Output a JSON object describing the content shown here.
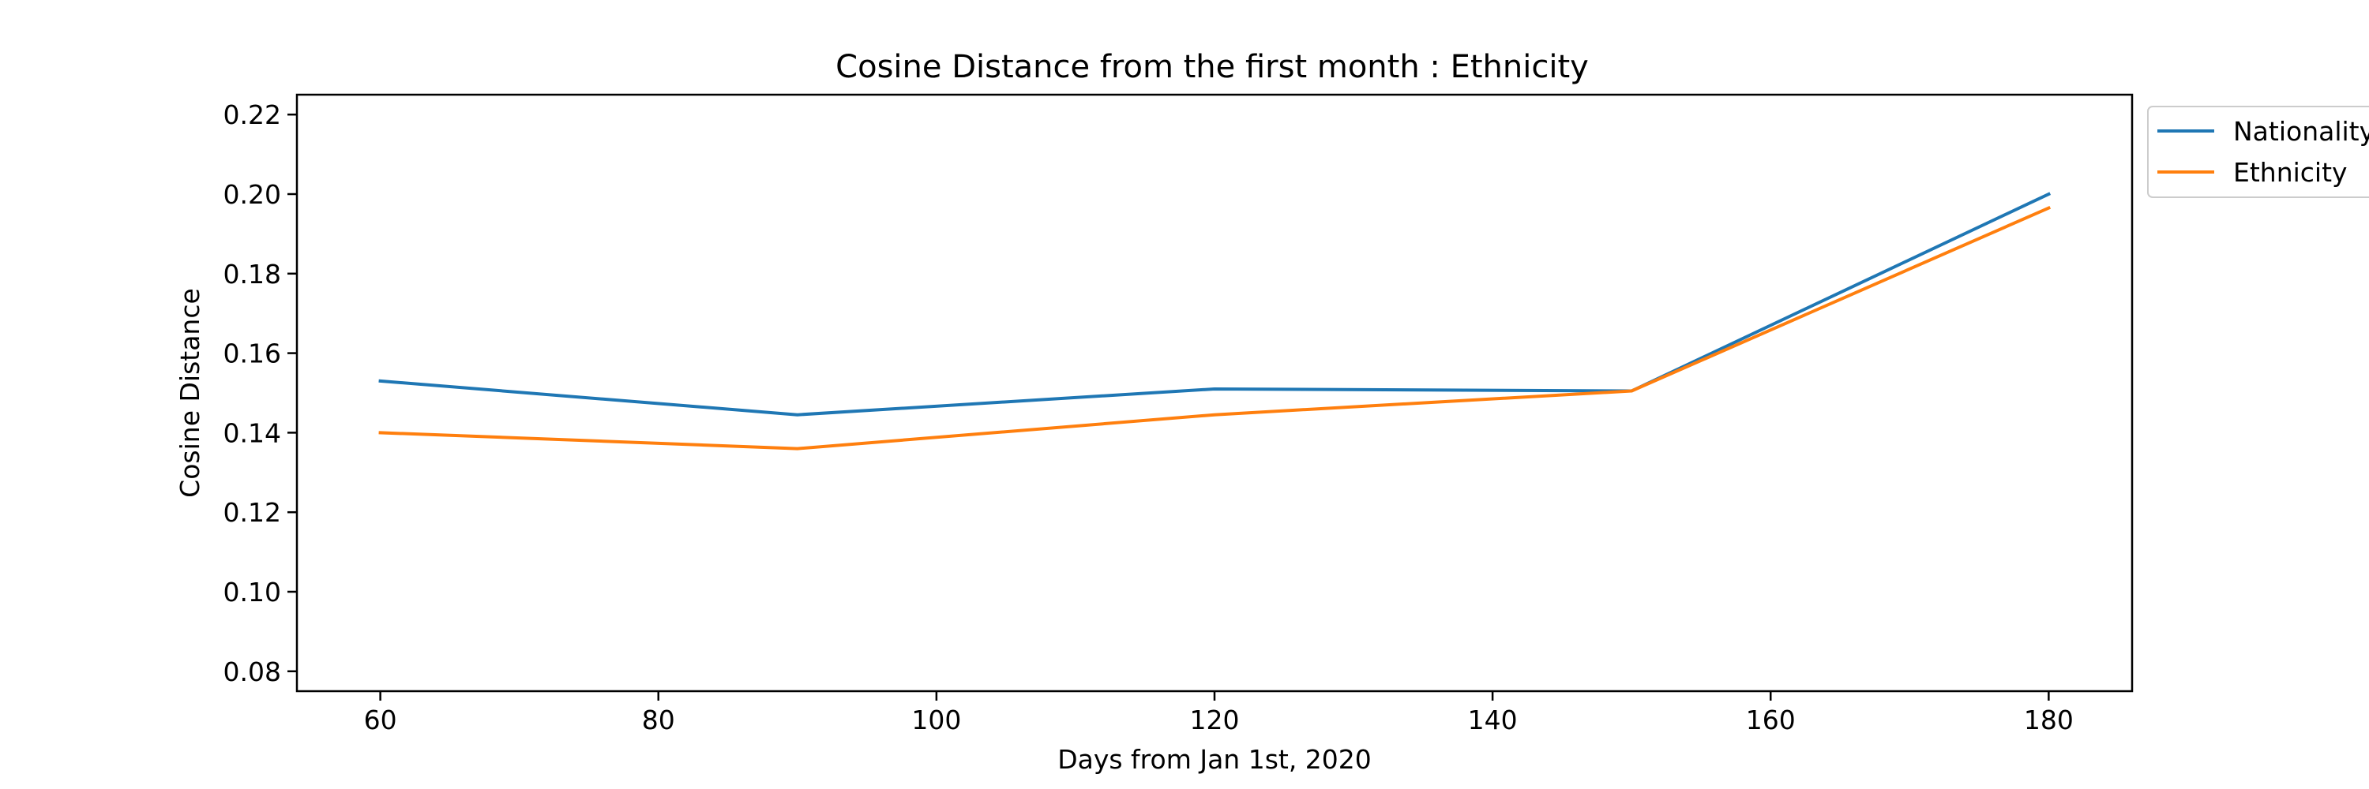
{
  "chart_data": {
    "type": "line",
    "title": "Cosine Distance from the first month : Ethnicity",
    "xlabel": "Days from Jan 1st, 2020",
    "ylabel": "Cosine Distance",
    "xlim": [
      54,
      186
    ],
    "ylim": [
      0.075,
      0.225
    ],
    "x_ticks": [
      60,
      80,
      100,
      120,
      140,
      160,
      180
    ],
    "y_ticks": [
      0.08,
      0.1,
      0.12,
      0.14,
      0.16,
      0.18,
      0.2,
      0.22
    ],
    "x_tick_labels": [
      "60",
      "80",
      "100",
      "120",
      "140",
      "160",
      "180"
    ],
    "y_tick_labels": [
      "0.08",
      "0.10",
      "0.12",
      "0.14",
      "0.16",
      "0.18",
      "0.20",
      "0.22"
    ],
    "x": [
      60,
      90,
      120,
      150,
      180
    ],
    "series": [
      {
        "name": "Nationality",
        "color": "#1f77b4",
        "values": [
          0.153,
          0.1445,
          0.151,
          0.1505,
          0.2
        ]
      },
      {
        "name": "Ethnicity",
        "color": "#ff7f0e",
        "values": [
          0.14,
          0.136,
          0.1445,
          0.1505,
          0.1965
        ]
      }
    ],
    "legend_position": "outside upper-right",
    "grid": false
  }
}
